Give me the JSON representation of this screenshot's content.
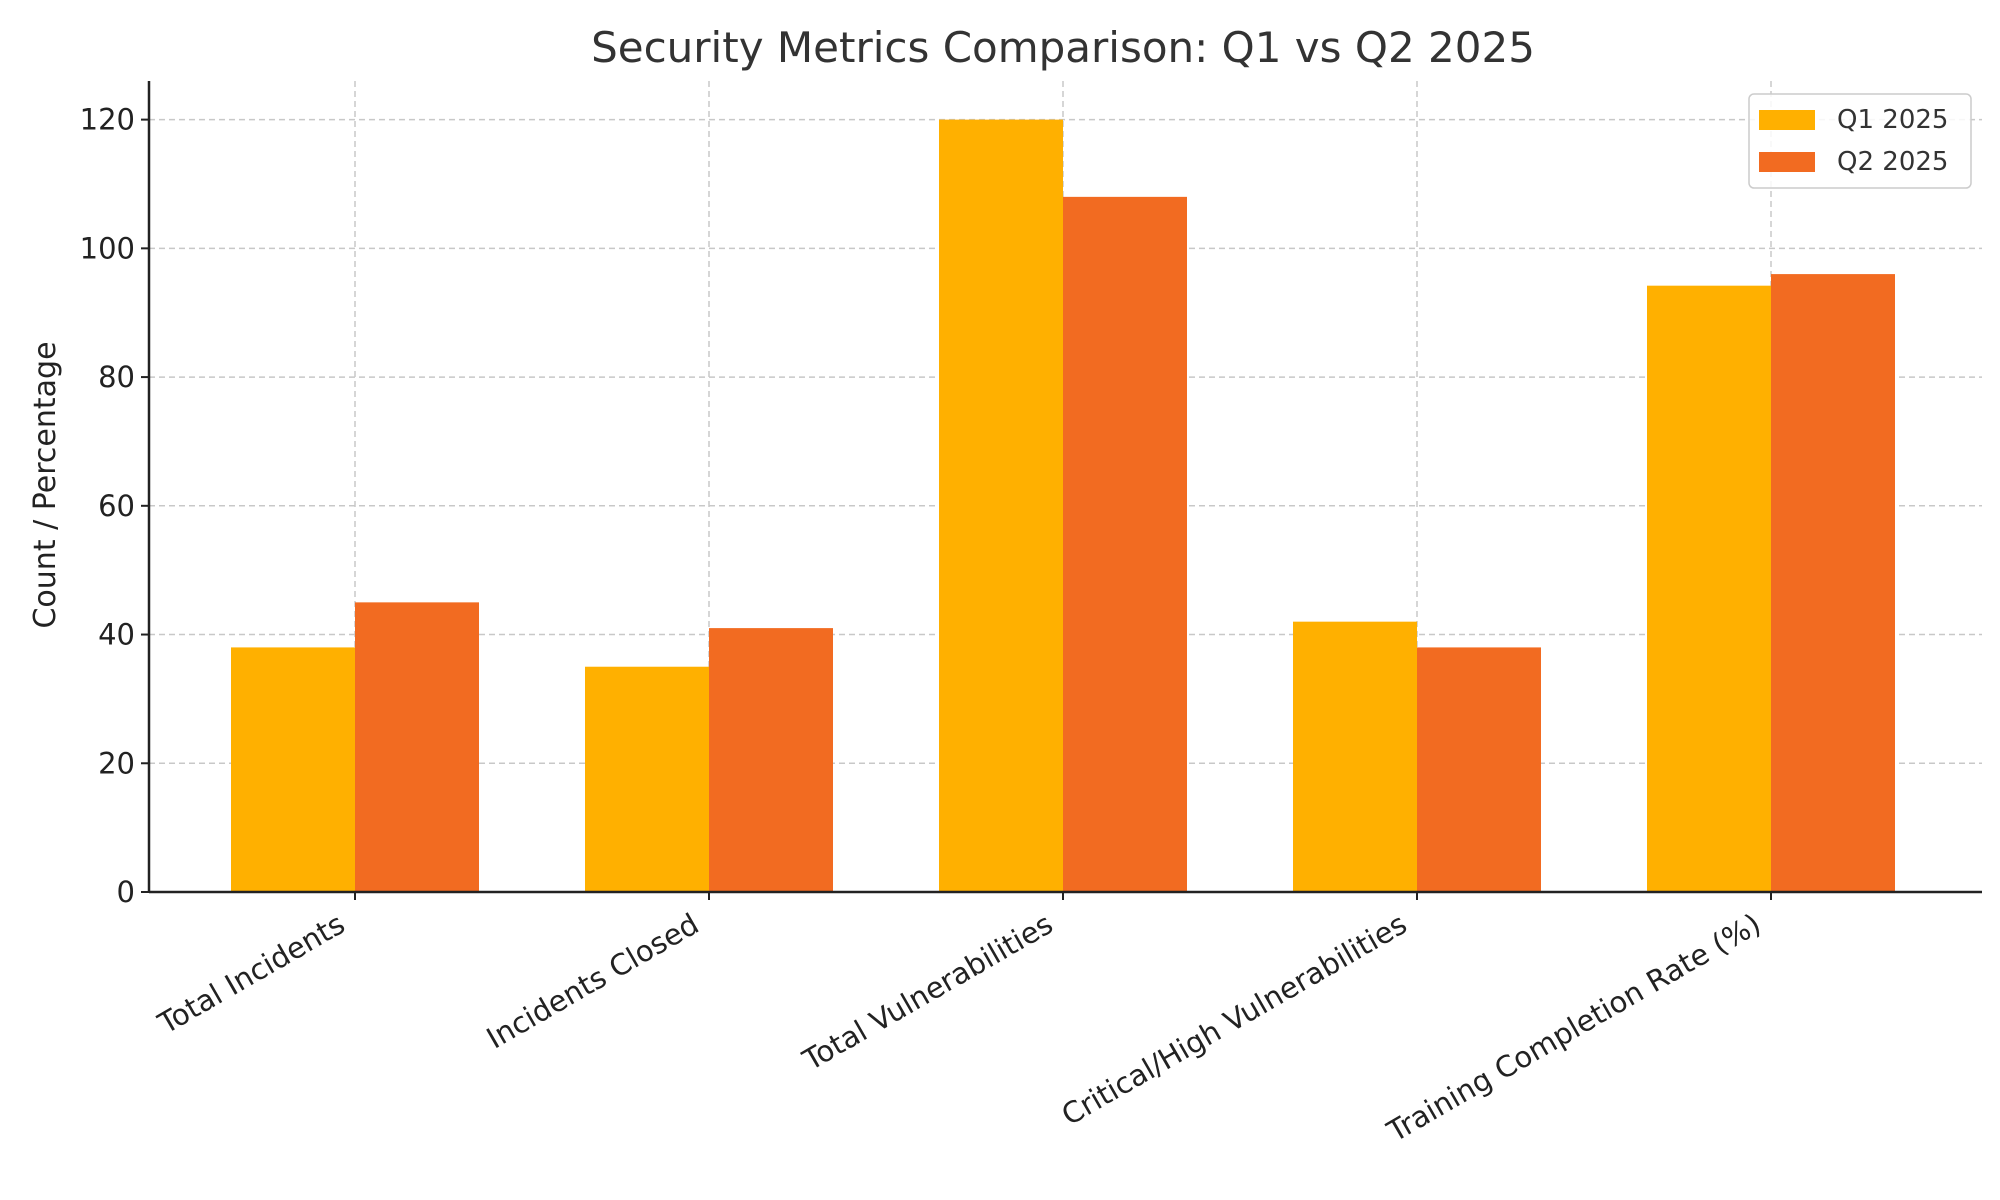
{
  "chart_data": {
    "type": "bar",
    "title": "Security Metrics Comparison: Q1 vs Q2 2025",
    "xlabel": "",
    "ylabel": "Count / Percentage",
    "categories": [
      "Total Incidents",
      "Incidents Closed",
      "Total Vulnerabilities",
      "Critical/High Vulnerabilities",
      "Training Completion Rate (%)"
    ],
    "series": [
      {
        "name": "Q1 2025",
        "color": "#ffb000",
        "values": [
          38,
          35,
          120,
          42,
          94.2
        ]
      },
      {
        "name": "Q2 2025",
        "color": "#f26b21",
        "values": [
          45,
          41,
          108,
          38,
          96
        ]
      }
    ],
    "ylim": [
      0,
      126
    ],
    "yticks": [
      0,
      20,
      40,
      60,
      80,
      100,
      120
    ],
    "grid": true,
    "legend": "top-right"
  }
}
